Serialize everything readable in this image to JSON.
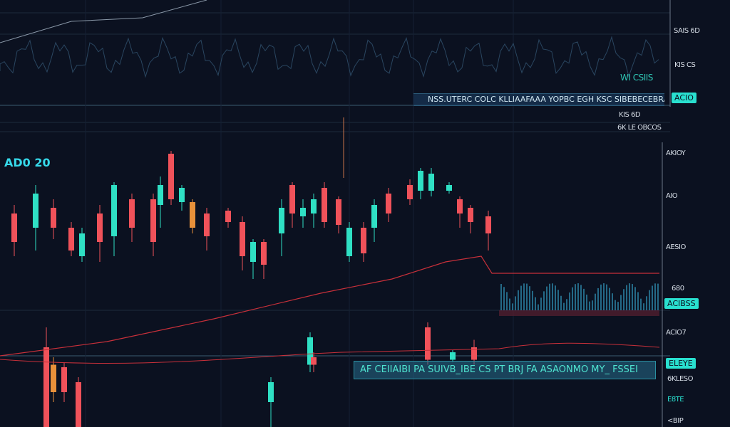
{
  "chart_data": {
    "type": "candlestick",
    "title": "AD0 20",
    "colors": {
      "up": "#2fe0c4",
      "down": "#f0525a",
      "neutral": "#e8913a",
      "trend": "#c8303a",
      "background": "#0b1120",
      "accent": "#29e0cf"
    },
    "grid": true,
    "ylim": [
      0,
      100
    ],
    "candles": [
      {
        "t": 4,
        "o": 65,
        "c": 75,
        "h": 78,
        "l": 60,
        "d": "down"
      },
      {
        "t": 10,
        "o": 70,
        "c": 82,
        "h": 85,
        "l": 62,
        "d": "up"
      },
      {
        "t": 15,
        "o": 77,
        "c": 70,
        "h": 80,
        "l": 66,
        "d": "down"
      },
      {
        "t": 20,
        "o": 70,
        "c": 62,
        "h": 72,
        "l": 60,
        "d": "down"
      },
      {
        "t": 23,
        "o": 60,
        "c": 68,
        "h": 70,
        "l": 58,
        "d": "up"
      },
      {
        "t": 28,
        "o": 75,
        "c": 65,
        "h": 78,
        "l": 58,
        "d": "down"
      },
      {
        "t": 32,
        "o": 67,
        "c": 85,
        "h": 86,
        "l": 60,
        "d": "up"
      },
      {
        "t": 37,
        "o": 80,
        "c": 70,
        "h": 82,
        "l": 65,
        "d": "down"
      },
      {
        "t": 43,
        "o": 80,
        "c": 65,
        "h": 82,
        "l": 60,
        "d": "down"
      },
      {
        "t": 45,
        "o": 78,
        "c": 85,
        "h": 88,
        "l": 70,
        "d": "up"
      },
      {
        "t": 48,
        "o": 96,
        "c": 80,
        "h": 97,
        "l": 78,
        "d": "down"
      },
      {
        "t": 51,
        "o": 79,
        "c": 84,
        "h": 85,
        "l": 76,
        "d": "up"
      },
      {
        "t": 54,
        "o": 79,
        "c": 70,
        "h": 80,
        "l": 68,
        "d": "neutral"
      },
      {
        "t": 58,
        "o": 75,
        "c": 67,
        "h": 77,
        "l": 62,
        "d": "down"
      },
      {
        "t": 64,
        "o": 76,
        "c": 72,
        "h": 77,
        "l": 70,
        "d": "down"
      },
      {
        "t": 68,
        "o": 72,
        "c": 60,
        "h": 74,
        "l": 55,
        "d": "down"
      },
      {
        "t": 71,
        "o": 58,
        "c": 65,
        "h": 66,
        "l": 52,
        "d": "up"
      },
      {
        "t": 74,
        "o": 65,
        "c": 57,
        "h": 66,
        "l": 52,
        "d": "down"
      },
      {
        "t": 79,
        "o": 68,
        "c": 77,
        "h": 80,
        "l": 60,
        "d": "up"
      },
      {
        "t": 82,
        "o": 85,
        "c": 75,
        "h": 86,
        "l": 70,
        "d": "down"
      },
      {
        "t": 85,
        "o": 74,
        "c": 77,
        "h": 80,
        "l": 70,
        "d": "up"
      },
      {
        "t": 88,
        "o": 75,
        "c": 80,
        "h": 82,
        "l": 70,
        "d": "up"
      },
      {
        "t": 91,
        "o": 84,
        "c": 72,
        "h": 86,
        "l": 70,
        "d": "down"
      },
      {
        "t": 95,
        "o": 80,
        "c": 71,
        "h": 81,
        "l": 68,
        "d": "down"
      },
      {
        "t": 98,
        "o": 60,
        "c": 70,
        "h": 72,
        "l": 58,
        "d": "up"
      },
      {
        "t": 102,
        "o": 70,
        "c": 61,
        "h": 72,
        "l": 58,
        "d": "down"
      },
      {
        "t": 105,
        "o": 70,
        "c": 78,
        "h": 80,
        "l": 65,
        "d": "up"
      },
      {
        "t": 109,
        "o": 82,
        "c": 75,
        "h": 84,
        "l": 72,
        "d": "down"
      },
      {
        "t": 115,
        "o": 85,
        "c": 80,
        "h": 87,
        "l": 78,
        "d": "down"
      },
      {
        "t": 118,
        "o": 83,
        "c": 90,
        "h": 91,
        "l": 80,
        "d": "up"
      },
      {
        "t": 121,
        "o": 83,
        "c": 89,
        "h": 91,
        "l": 81,
        "d": "up"
      },
      {
        "t": 126,
        "o": 83,
        "c": 85,
        "h": 86,
        "l": 82,
        "d": "up"
      },
      {
        "t": 129,
        "o": 80,
        "c": 75,
        "h": 81,
        "l": 70,
        "d": "down"
      },
      {
        "t": 132,
        "o": 77,
        "c": 72,
        "h": 78,
        "l": 68,
        "d": "down"
      },
      {
        "t": 137,
        "o": 74,
        "c": 68,
        "h": 76,
        "l": 62,
        "d": "down"
      }
    ],
    "lower_candles": [
      {
        "t": 13,
        "o": 32,
        "c": 0,
        "h": 40,
        "l": 0,
        "d": "down"
      },
      {
        "t": 15,
        "o": 25,
        "c": 14,
        "h": 28,
        "l": 10,
        "d": "neutral"
      },
      {
        "t": 18,
        "o": 24,
        "c": 14,
        "h": 26,
        "l": 10,
        "d": "down"
      },
      {
        "t": 22,
        "o": 18,
        "c": 0,
        "h": 20,
        "l": 0,
        "d": "down"
      },
      {
        "t": 76,
        "o": 10,
        "c": 18,
        "h": 20,
        "l": 0,
        "d": "up"
      },
      {
        "t": 87,
        "o": 36,
        "c": 25,
        "h": 38,
        "l": 22,
        "d": "up"
      },
      {
        "t": 88,
        "o": 28,
        "c": 25,
        "h": 30,
        "l": 22,
        "d": "down"
      },
      {
        "t": 120,
        "o": 40,
        "c": 27,
        "h": 42,
        "l": 25,
        "d": "down"
      },
      {
        "t": 127,
        "o": 30,
        "c": 27,
        "h": 31,
        "l": 26,
        "d": "up"
      },
      {
        "t": 133,
        "o": 32,
        "c": 27,
        "h": 35,
        "l": 25,
        "d": "down"
      }
    ],
    "trend_line": [
      [
        0,
        25
      ],
      [
        30,
        30
      ],
      [
        60,
        38
      ],
      [
        90,
        47
      ],
      [
        110,
        52
      ],
      [
        125,
        58
      ],
      [
        135,
        60
      ],
      [
        138,
        54
      ],
      [
        185,
        54
      ]
    ],
    "top_line": [
      [
        0,
        60
      ],
      [
        20,
        30
      ],
      [
        40,
        25
      ],
      [
        58,
        0
      ]
    ],
    "axis_labels_top": [
      "SAIS 6D",
      "KIS CS",
      "KIS 6D",
      "ACIO",
      "6K LE OBCOS"
    ],
    "axis_labels_main": [
      "AKIOY",
      "AIO",
      "AESIO",
      "680",
      "ACIO7",
      "<BIP"
    ],
    "price_tags": [
      "ACIO",
      "ACIBSS",
      "E8TE"
    ],
    "top_banner": "NSS.UTERC COLC KLLIAAFAAA YOPBC EGH   KSC SIBEBECEBRAXEZ",
    "top_readout": "WI CSIIS",
    "bottom_banner": "AF CEIIAIBI PA SUIVB_IBE CS PT BRJ  FA  ASAONMO MY_ FSSEI",
    "lower_tag_label": "ELEYE",
    "lower_axis_label": "6KLESO"
  }
}
